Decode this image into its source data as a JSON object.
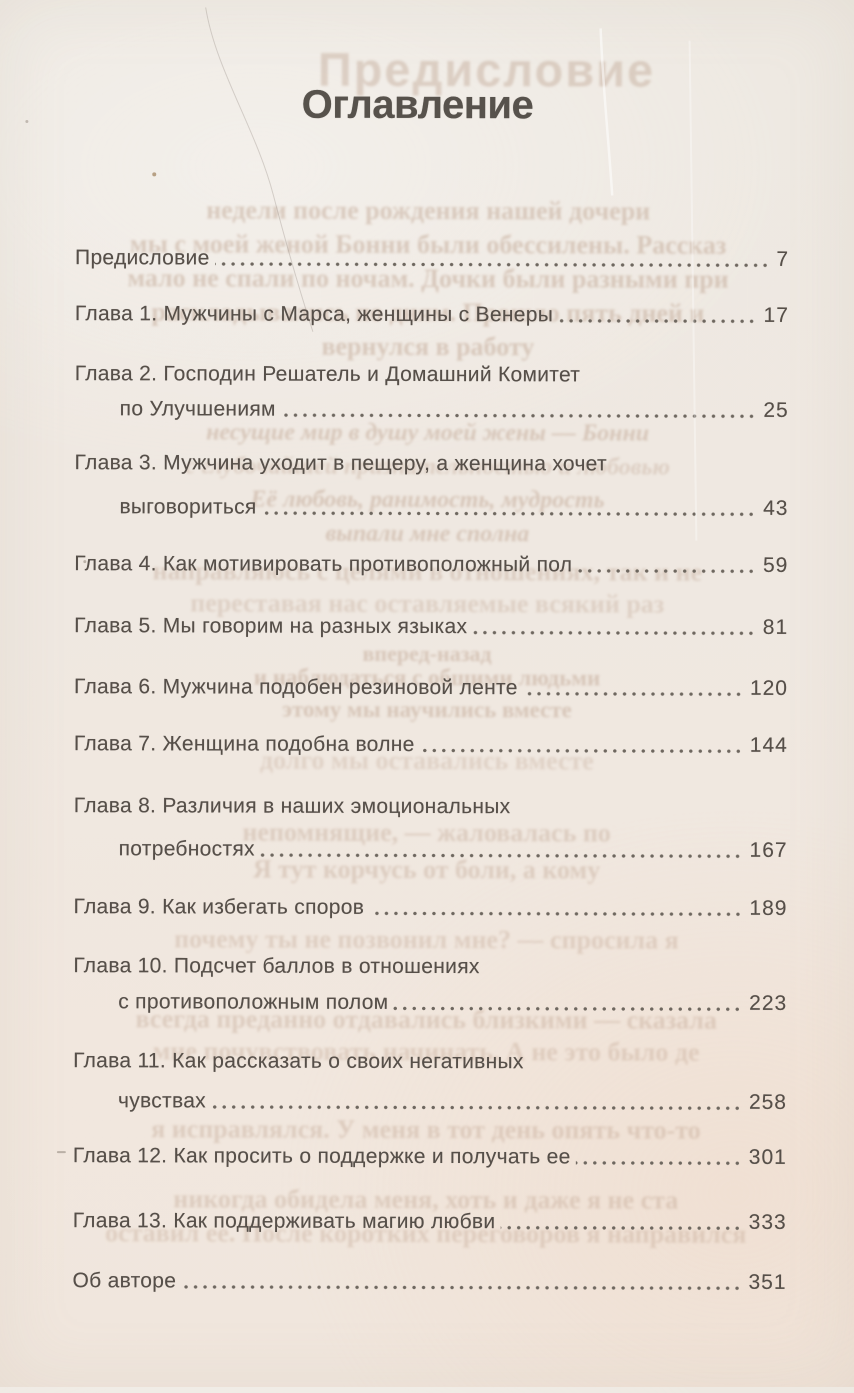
{
  "toc": {
    "title": "Оглавление",
    "entries": [
      {
        "line1": "Предисловие",
        "line2": "",
        "page": "7"
      },
      {
        "line1": "Глава 1. Мужчины с Марса, женщины с Венеры",
        "line2": "",
        "page": "17"
      },
      {
        "line1": "Глава 2. Господин Решатель и Домашний Комитет",
        "line2": "по Улучшениям",
        "page": "25"
      },
      {
        "line1": "Глава 3. Мужчина уходит в пещеру, а женщина хочет",
        "line2": "выговориться",
        "page": "43"
      },
      {
        "line1": "Глава 4. Как мотивировать противоположный пол",
        "line2": "",
        "page": "59"
      },
      {
        "line1": "Глава 5. Мы говорим на разных языках",
        "line2": "",
        "page": "81"
      },
      {
        "line1": "Глава 6. Мужчина подобен резиновой ленте",
        "line2": "",
        "page": "120"
      },
      {
        "line1": "Глава 7. Женщина подобна волне",
        "line2": "",
        "page": "144"
      },
      {
        "line1": "Глава 8. Различия в наших эмоциональных",
        "line2": "потребностях",
        "page": "167"
      },
      {
        "line1": "Глава 9. Как избегать споров",
        "line2": "",
        "page": "189"
      },
      {
        "line1": "Глава 10. Подсчет баллов в отношениях",
        "line2": "с противоположным полом",
        "page": "223"
      },
      {
        "line1": "Глава 11. Как рассказать о своих негативных",
        "line2": "чувствах",
        "page": "258"
      },
      {
        "line1": "Глава 12. Как просить о поддержке и получать ее",
        "line2": "",
        "page": "301"
      },
      {
        "line1": "Глава 13. Как поддерживать магию любви",
        "line2": "",
        "page": "333"
      },
      {
        "line1": "Об авторе",
        "line2": "",
        "page": "351"
      }
    ]
  },
  "bleedthrough": {
    "title": "Предисловие",
    "lines": [
      "недели после рождения нашей дочери",
      "мы с моей женой Бонни были обессилены. Рассказ",
      "мало не спали по ночам. Дочки были разными при",
      "раскладывались по дням. Прошло пять дней и",
      "вернулся в работу",
      "несущие мир в душу моей жены — Бонни",
      "с глубочайшей признательностью и любовью",
      "Её любовь, ранимость, мудрость",
      "выпали мне сполна",
      "направляюсь с целями в отношениях, так и не",
      "переставая нас оставляемые всякий раз",
      "вперед-назад",
      "и наблюдаться с общими людьми",
      "этому мы научились вместе",
      "долго мы оставались вместе",
      "непомнящие, — жаловалась по",
      "Я тут корчусь от боли, а кому",
      "почему ты не позвонил мне? — спросила я",
      "всегда преданно отдавались близкими — сказала",
      "мне почувствовать начинать. А не это было де",
      "я исправлялся. У меня в тот день опять что-то",
      "никогда обидела меня, хоть и даже я не ста",
      "оставил ее. После коротких переговоров я направился"
    ]
  },
  "colors": {
    "paper": "#efe8e1",
    "ink": "#564f49",
    "dot_leader": "#6e675f",
    "bleedthrough": "#b08f78"
  }
}
